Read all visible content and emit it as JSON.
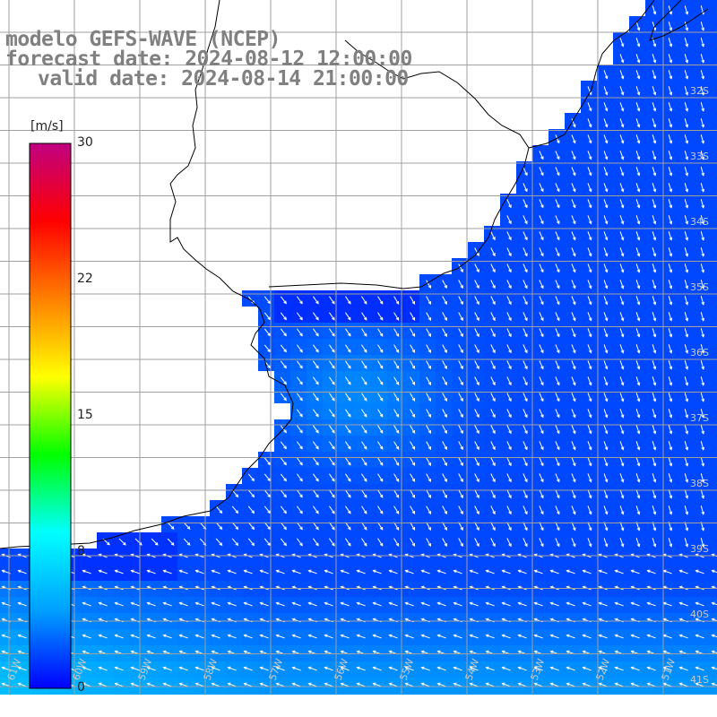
{
  "title": {
    "model": "modelo GEFS-WAVE (NCEP)",
    "forecast_date": "forecast date: 2024-08-12 12:00:00",
    "valid_date": "valid date: 2024-08-14 21:00:00"
  },
  "colorbar": {
    "unit": "[m/s]",
    "ticks": [
      "30",
      "22",
      "15",
      "8",
      "0"
    ],
    "min": 0,
    "max": 30,
    "colors": [
      "#0000ff",
      "#00a0ff",
      "#00ffff",
      "#00ff00",
      "#ffff00",
      "#ff8000",
      "#ff0000",
      "#c00080"
    ]
  },
  "map": {
    "lat_labels": [
      "32S",
      "33S",
      "34S",
      "35S",
      "36S",
      "37S",
      "38S",
      "39S",
      "40S",
      "41S"
    ],
    "lon_labels": [
      "61W",
      "60W",
      "59W",
      "58W",
      "57W",
      "56W",
      "55W",
      "54W",
      "53W",
      "52W",
      "51W"
    ],
    "land_color": "#ffffff",
    "grid_color": "#a0a0a0",
    "arrow_color": "#ffffff"
  }
}
